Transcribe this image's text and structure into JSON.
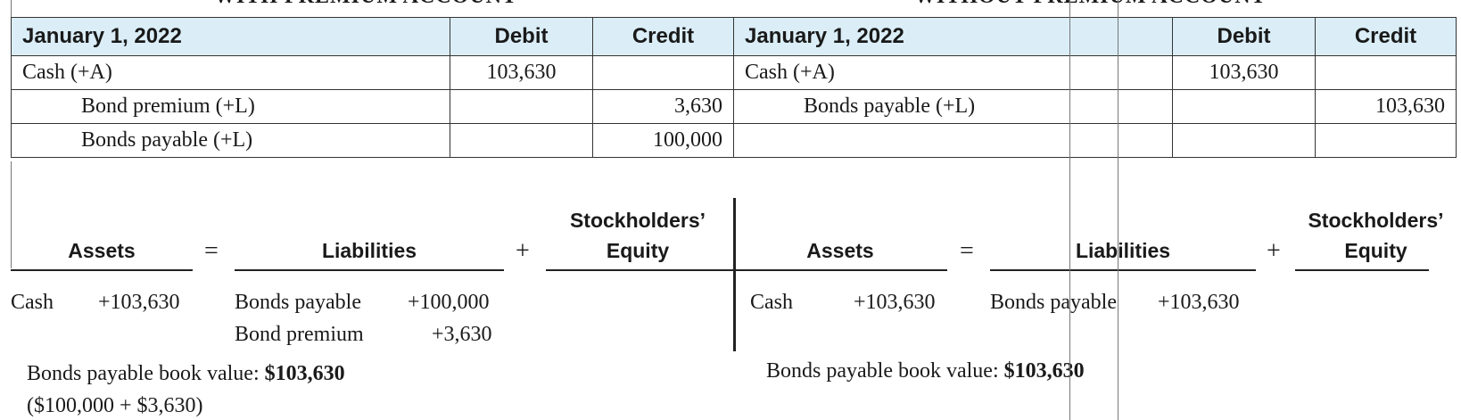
{
  "left": {
    "title": "WITH PREMIUM ACCOUNT",
    "journal": {
      "headers": [
        "January 1, 2022",
        "Debit",
        "Credit"
      ],
      "rows": [
        {
          "account": "Cash (+A)",
          "debit": "103,630",
          "credit": ""
        },
        {
          "account": "Bond premium (+L)",
          "debit": "",
          "credit": "3,630"
        },
        {
          "account": "Bonds payable (+L)",
          "debit": "",
          "credit": "100,000"
        }
      ]
    },
    "equation": {
      "assets": "Assets",
      "eq": "=",
      "liabilities": "Liabilities",
      "plus": "+",
      "equity_line1": "Stockholders’",
      "equity_line2": "Equity",
      "asset_label": "Cash",
      "asset_value": "+103,630",
      "liab1_label": "Bonds payable",
      "liab1_value": "+100,000",
      "liab2_label": "Bond premium",
      "liab2_value": "+3,630"
    },
    "book_value_label": "Bonds payable book value: ",
    "book_value": "$103,630",
    "book_value_calc": "($100,000 + $3,630)"
  },
  "right": {
    "title": "WITHOUT PREMIUM ACCOUNT",
    "journal": {
      "headers": [
        "January 1, 2022",
        "Debit",
        "Credit"
      ],
      "rows": [
        {
          "account": "Cash (+A)",
          "debit": "103,630",
          "credit": ""
        },
        {
          "account": "Bonds payable (+L)",
          "debit": "",
          "credit": "103,630"
        },
        {
          "account": "",
          "debit": "",
          "credit": ""
        }
      ]
    },
    "equation": {
      "assets": "Assets",
      "eq": "=",
      "liabilities": "Liabilities",
      "plus": "+",
      "equity_line1": "Stockholders’",
      "equity_line2": "Equity",
      "asset_label": "Cash",
      "asset_value": "+103,630",
      "liab1_label": "Bonds payable",
      "liab1_value": "+103,630"
    },
    "book_value_label": "Bonds payable book value: ",
    "book_value": "$103,630"
  }
}
